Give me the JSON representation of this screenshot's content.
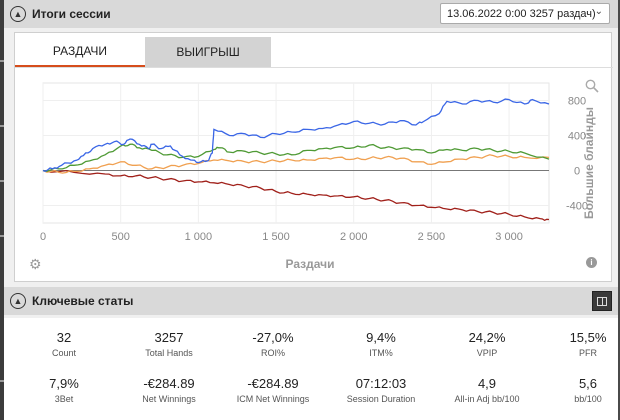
{
  "session": {
    "title": "Итоги сессии",
    "selected": "13.06.2022 0:00 3257 раздач)"
  },
  "tabs": [
    {
      "label": "РАЗДАЧИ",
      "active": true
    },
    {
      "label": "ВЫИГРЫШ",
      "active": false
    }
  ],
  "chart_data": {
    "type": "line",
    "xlabel": "Раздачи",
    "ylabel": "Большие блайнды",
    "x_ticks": [
      "0",
      "500",
      "1 000",
      "1 500",
      "2 000",
      "2 500",
      "3 000"
    ],
    "x_tick_values": [
      0,
      500,
      1000,
      1500,
      2000,
      2500,
      3000
    ],
    "y_ticks": [
      "800",
      "400",
      "0",
      "-400"
    ],
    "y_tick_values": [
      800,
      400,
      0,
      -400
    ],
    "xlim": [
      0,
      3257
    ],
    "ylim": [
      -600,
      1000
    ],
    "series": [
      {
        "color": "#3a66e6",
        "points": [
          [
            0,
            0
          ],
          [
            60,
            20
          ],
          [
            120,
            60
          ],
          [
            200,
            110
          ],
          [
            260,
            170
          ],
          [
            320,
            250
          ],
          [
            400,
            300
          ],
          [
            460,
            330
          ],
          [
            520,
            300
          ],
          [
            560,
            360
          ],
          [
            620,
            300
          ],
          [
            680,
            250
          ],
          [
            700,
            300
          ],
          [
            760,
            250
          ],
          [
            820,
            280
          ],
          [
            880,
            180
          ],
          [
            950,
            120
          ],
          [
            1000,
            90
          ],
          [
            1060,
            110
          ],
          [
            1090,
            200
          ],
          [
            1100,
            470
          ],
          [
            1200,
            400
          ],
          [
            1300,
            420
          ],
          [
            1400,
            380
          ],
          [
            1500,
            420
          ],
          [
            1600,
            440
          ],
          [
            1700,
            470
          ],
          [
            1800,
            480
          ],
          [
            1900,
            520
          ],
          [
            2000,
            560
          ],
          [
            2100,
            540
          ],
          [
            2200,
            530
          ],
          [
            2300,
            570
          ],
          [
            2400,
            520
          ],
          [
            2450,
            560
          ],
          [
            2550,
            650
          ],
          [
            2600,
            790
          ],
          [
            2700,
            760
          ],
          [
            2800,
            800
          ],
          [
            2900,
            780
          ],
          [
            3000,
            810
          ],
          [
            3100,
            760
          ],
          [
            3150,
            810
          ],
          [
            3257,
            760
          ]
        ]
      },
      {
        "color": "#4f9a35",
        "points": [
          [
            0,
            0
          ],
          [
            100,
            20
          ],
          [
            200,
            60
          ],
          [
            300,
            110
          ],
          [
            400,
            180
          ],
          [
            500,
            280
          ],
          [
            560,
            300
          ],
          [
            620,
            260
          ],
          [
            700,
            230
          ],
          [
            800,
            180
          ],
          [
            900,
            150
          ],
          [
            1000,
            160
          ],
          [
            1100,
            240
          ],
          [
            1140,
            260
          ],
          [
            1200,
            210
          ],
          [
            1300,
            220
          ],
          [
            1400,
            200
          ],
          [
            1500,
            190
          ],
          [
            1600,
            180
          ],
          [
            1700,
            230
          ],
          [
            1800,
            250
          ],
          [
            1900,
            270
          ],
          [
            2000,
            260
          ],
          [
            2100,
            290
          ],
          [
            2200,
            260
          ],
          [
            2300,
            250
          ],
          [
            2400,
            240
          ],
          [
            2500,
            200
          ],
          [
            2600,
            240
          ],
          [
            2700,
            230
          ],
          [
            2800,
            250
          ],
          [
            2900,
            230
          ],
          [
            3000,
            220
          ],
          [
            3100,
            200
          ],
          [
            3257,
            130
          ]
        ]
      },
      {
        "color": "#f0a050",
        "points": [
          [
            0,
            0
          ],
          [
            100,
            -20
          ],
          [
            200,
            -10
          ],
          [
            300,
            20
          ],
          [
            400,
            60
          ],
          [
            500,
            100
          ],
          [
            600,
            60
          ],
          [
            700,
            20
          ],
          [
            800,
            40
          ],
          [
            900,
            60
          ],
          [
            1000,
            80
          ],
          [
            1100,
            120
          ],
          [
            1200,
            110
          ],
          [
            1300,
            100
          ],
          [
            1400,
            100
          ],
          [
            1500,
            110
          ],
          [
            1600,
            120
          ],
          [
            1700,
            120
          ],
          [
            1800,
            140
          ],
          [
            1900,
            150
          ],
          [
            2000,
            130
          ],
          [
            2100,
            140
          ],
          [
            2200,
            150
          ],
          [
            2300,
            140
          ],
          [
            2400,
            100
          ],
          [
            2500,
            70
          ],
          [
            2600,
            100
          ],
          [
            2700,
            130
          ],
          [
            2800,
            150
          ],
          [
            2900,
            170
          ],
          [
            3000,
            160
          ],
          [
            3100,
            150
          ],
          [
            3257,
            150
          ]
        ]
      },
      {
        "color": "#a0201a",
        "points": [
          [
            0,
            0
          ],
          [
            200,
            -20
          ],
          [
            400,
            -40
          ],
          [
            500,
            -60
          ],
          [
            600,
            -60
          ],
          [
            700,
            -80
          ],
          [
            800,
            -100
          ],
          [
            900,
            -120
          ],
          [
            1000,
            -130
          ],
          [
            1100,
            -140
          ],
          [
            1200,
            -160
          ],
          [
            1300,
            -180
          ],
          [
            1400,
            -200
          ],
          [
            1500,
            -240
          ],
          [
            1600,
            -260
          ],
          [
            1700,
            -270
          ],
          [
            1800,
            -280
          ],
          [
            1900,
            -290
          ],
          [
            2000,
            -300
          ],
          [
            2100,
            -320
          ],
          [
            2200,
            -340
          ],
          [
            2300,
            -370
          ],
          [
            2400,
            -400
          ],
          [
            2500,
            -420
          ],
          [
            2600,
            -440
          ],
          [
            2700,
            -450
          ],
          [
            2800,
            -470
          ],
          [
            2900,
            -480
          ],
          [
            3000,
            -500
          ],
          [
            3100,
            -530
          ],
          [
            3200,
            -550
          ],
          [
            3257,
            -560
          ]
        ]
      }
    ]
  },
  "keystats": {
    "title": "Ключевые статы",
    "items": [
      {
        "value": "32",
        "label": "Count"
      },
      {
        "value": "3257",
        "label": "Total Hands"
      },
      {
        "value": "-27,0%",
        "label": "ROI%"
      },
      {
        "value": "9,4%",
        "label": "ITM%"
      },
      {
        "value": "24,2%",
        "label": "VPIP"
      },
      {
        "value": "15,5%",
        "label": "PFR"
      },
      {
        "value": "7,9%",
        "label": "3Bet"
      },
      {
        "value": "-€284.89",
        "label": "Net Winnings"
      },
      {
        "value": "-€284.89",
        "label": "ICM Net Winnings"
      },
      {
        "value": "07:12:03",
        "label": "Session Duration"
      },
      {
        "value": "4,9",
        "label": "All-in Adj bb/100"
      },
      {
        "value": "5,6",
        "label": "bb/100"
      }
    ]
  }
}
